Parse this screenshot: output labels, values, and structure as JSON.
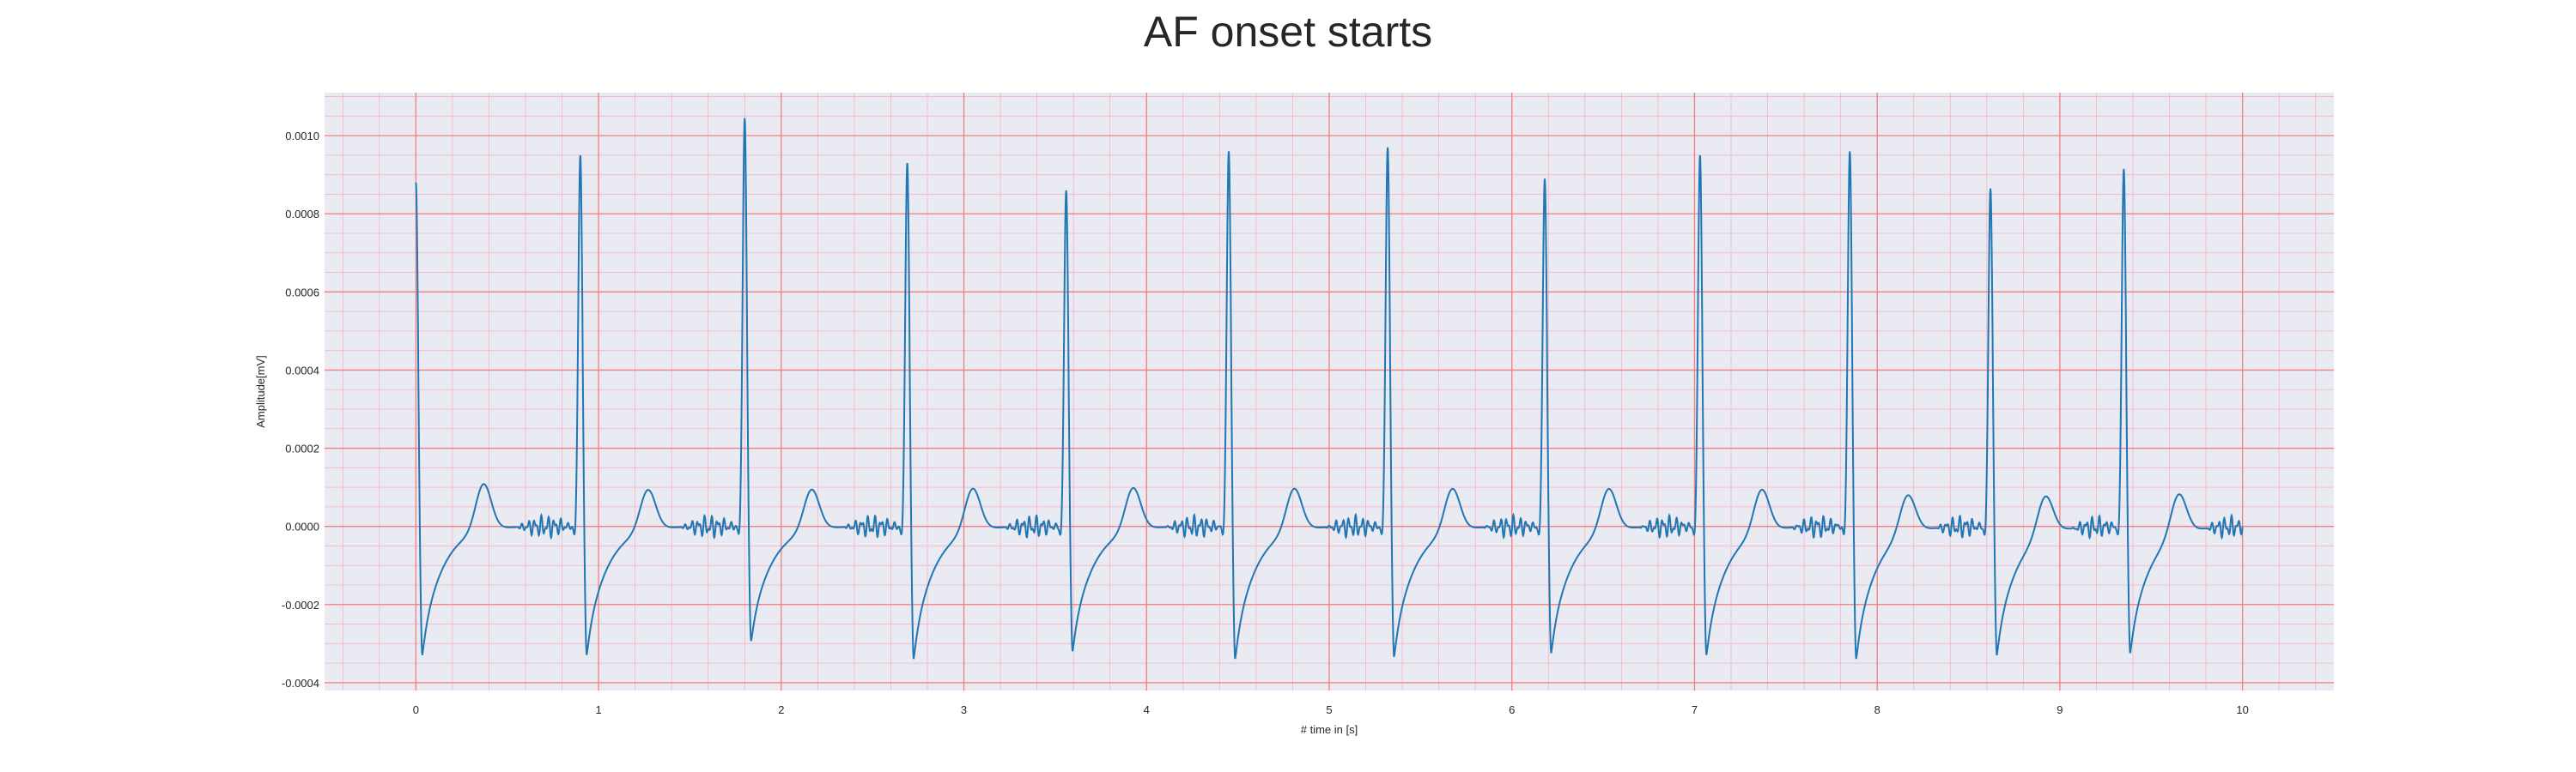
{
  "chart_data": {
    "type": "line",
    "title": "AF onset starts",
    "xlabel": "# time in [s]",
    "ylabel": "Amplitude[mV]",
    "xlim": [
      -0.5,
      10.5
    ],
    "ylim": [
      -0.00042,
      0.00111
    ],
    "x_ticks": [
      0,
      1,
      2,
      3,
      4,
      5,
      6,
      7,
      8,
      9,
      10
    ],
    "x_tick_labels": [
      "0",
      "1",
      "2",
      "3",
      "4",
      "5",
      "6",
      "7",
      "8",
      "9",
      "10"
    ],
    "y_ticks": [
      -0.0004,
      -0.0002,
      0.0,
      0.0002,
      0.0004,
      0.0006,
      0.0008,
      0.001
    ],
    "y_tick_labels": [
      "-0.0004",
      "-0.0002",
      "0.0000",
      "0.0002",
      "0.0004",
      "0.0006",
      "0.0008",
      "0.0010"
    ],
    "grid": true,
    "minor_grid": true,
    "series": [
      {
        "beats": [
          {
            "r_time": 0.0,
            "r_amp": 0.00088,
            "s_amp": -0.000335,
            "t_amp": 0.00012,
            "rr": 0.9
          },
          {
            "r_time": 0.9,
            "r_amp": 0.00095,
            "s_amp": -0.000335,
            "t_amp": 0.000105,
            "rr": 0.9
          },
          {
            "r_time": 1.8,
            "r_amp": 0.001045,
            "s_amp": -0.0003,
            "t_amp": 0.000105,
            "rr": 0.89
          },
          {
            "r_time": 2.69,
            "r_amp": 0.00093,
            "s_amp": -0.000345,
            "t_amp": 0.00011,
            "rr": 0.87
          },
          {
            "r_time": 3.56,
            "r_amp": 0.00086,
            "s_amp": -0.000325,
            "t_amp": 0.00011,
            "rr": 0.89
          },
          {
            "r_time": 4.45,
            "r_amp": 0.00096,
            "s_amp": -0.000345,
            "t_amp": 0.00011,
            "rr": 0.87
          },
          {
            "r_time": 5.32,
            "r_amp": 0.00097,
            "s_amp": -0.00034,
            "t_amp": 0.00011,
            "rr": 0.86
          },
          {
            "r_time": 6.18,
            "r_amp": 0.00089,
            "s_amp": -0.00033,
            "t_amp": 0.00011,
            "rr": 0.85
          },
          {
            "r_time": 7.03,
            "r_amp": 0.00095,
            "s_amp": -0.000335,
            "t_amp": 0.00011,
            "rr": 0.82
          },
          {
            "r_time": 7.85,
            "r_amp": 0.00096,
            "s_amp": -0.000345,
            "t_amp": 0.0001,
            "rr": 0.77
          },
          {
            "r_time": 8.62,
            "r_amp": 0.000865,
            "s_amp": -0.000335,
            "t_amp": 0.0001,
            "rr": 0.73
          },
          {
            "r_time": 9.35,
            "r_amp": 0.000915,
            "s_amp": -0.00033,
            "t_amp": 0.000105,
            "rr": 0.73
          }
        ],
        "t_end": 10.0,
        "color": "#1f77b4"
      }
    ]
  },
  "colors": {
    "plot_background": "#eaeaf2",
    "major_grid": "#f08080",
    "minor_grid": "#f4b4c4",
    "line": "#1f77b4"
  }
}
